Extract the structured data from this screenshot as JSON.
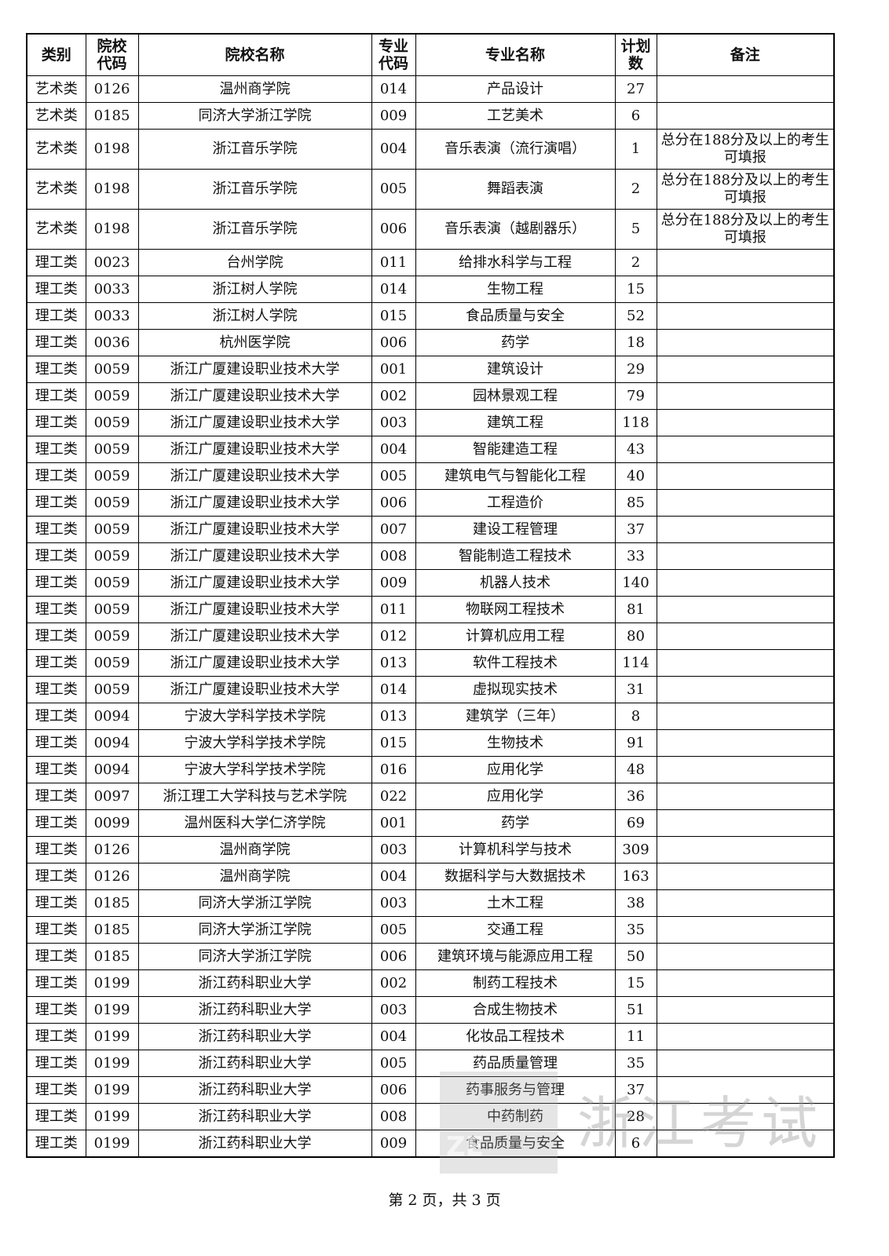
{
  "table": {
    "headers": [
      "类别",
      "院校\n代码",
      "院校名称",
      "专业\n代码",
      "专业名称",
      "计划\n数",
      "备注"
    ],
    "rows": [
      [
        "艺术类",
        "0126",
        "温州商学院",
        "014",
        "产品设计",
        "27",
        ""
      ],
      [
        "艺术类",
        "0185",
        "同济大学浙江学院",
        "009",
        "工艺美术",
        "6",
        ""
      ],
      [
        "艺术类",
        "0198",
        "浙江音乐学院",
        "004",
        "音乐表演（流行演唱）",
        "1",
        "总分在188分及以上的考生可填报"
      ],
      [
        "艺术类",
        "0198",
        "浙江音乐学院",
        "005",
        "舞蹈表演",
        "2",
        "总分在188分及以上的考生可填报"
      ],
      [
        "艺术类",
        "0198",
        "浙江音乐学院",
        "006",
        "音乐表演（越剧器乐）",
        "5",
        "总分在188分及以上的考生可填报"
      ],
      [
        "理工类",
        "0023",
        "台州学院",
        "011",
        "给排水科学与工程",
        "2",
        ""
      ],
      [
        "理工类",
        "0033",
        "浙江树人学院",
        "014",
        "生物工程",
        "15",
        ""
      ],
      [
        "理工类",
        "0033",
        "浙江树人学院",
        "015",
        "食品质量与安全",
        "52",
        ""
      ],
      [
        "理工类",
        "0036",
        "杭州医学院",
        "006",
        "药学",
        "18",
        ""
      ],
      [
        "理工类",
        "0059",
        "浙江广厦建设职业技术大学",
        "001",
        "建筑设计",
        "29",
        ""
      ],
      [
        "理工类",
        "0059",
        "浙江广厦建设职业技术大学",
        "002",
        "园林景观工程",
        "79",
        ""
      ],
      [
        "理工类",
        "0059",
        "浙江广厦建设职业技术大学",
        "003",
        "建筑工程",
        "118",
        ""
      ],
      [
        "理工类",
        "0059",
        "浙江广厦建设职业技术大学",
        "004",
        "智能建造工程",
        "43",
        ""
      ],
      [
        "理工类",
        "0059",
        "浙江广厦建设职业技术大学",
        "005",
        "建筑电气与智能化工程",
        "40",
        ""
      ],
      [
        "理工类",
        "0059",
        "浙江广厦建设职业技术大学",
        "006",
        "工程造价",
        "85",
        ""
      ],
      [
        "理工类",
        "0059",
        "浙江广厦建设职业技术大学",
        "007",
        "建设工程管理",
        "37",
        ""
      ],
      [
        "理工类",
        "0059",
        "浙江广厦建设职业技术大学",
        "008",
        "智能制造工程技术",
        "33",
        ""
      ],
      [
        "理工类",
        "0059",
        "浙江广厦建设职业技术大学",
        "009",
        "机器人技术",
        "140",
        ""
      ],
      [
        "理工类",
        "0059",
        "浙江广厦建设职业技术大学",
        "011",
        "物联网工程技术",
        "81",
        ""
      ],
      [
        "理工类",
        "0059",
        "浙江广厦建设职业技术大学",
        "012",
        "计算机应用工程",
        "80",
        ""
      ],
      [
        "理工类",
        "0059",
        "浙江广厦建设职业技术大学",
        "013",
        "软件工程技术",
        "114",
        ""
      ],
      [
        "理工类",
        "0059",
        "浙江广厦建设职业技术大学",
        "014",
        "虚拟现实技术",
        "31",
        ""
      ],
      [
        "理工类",
        "0094",
        "宁波大学科学技术学院",
        "013",
        "建筑学（三年）",
        "8",
        ""
      ],
      [
        "理工类",
        "0094",
        "宁波大学科学技术学院",
        "015",
        "生物技术",
        "91",
        ""
      ],
      [
        "理工类",
        "0094",
        "宁波大学科学技术学院",
        "016",
        "应用化学",
        "48",
        ""
      ],
      [
        "理工类",
        "0097",
        "浙江理工大学科技与艺术学院",
        "022",
        "应用化学",
        "36",
        ""
      ],
      [
        "理工类",
        "0099",
        "温州医科大学仁济学院",
        "001",
        "药学",
        "69",
        ""
      ],
      [
        "理工类",
        "0126",
        "温州商学院",
        "003",
        "计算机科学与技术",
        "309",
        ""
      ],
      [
        "理工类",
        "0126",
        "温州商学院",
        "004",
        "数据科学与大数据技术",
        "163",
        ""
      ],
      [
        "理工类",
        "0185",
        "同济大学浙江学院",
        "003",
        "土木工程",
        "38",
        ""
      ],
      [
        "理工类",
        "0185",
        "同济大学浙江学院",
        "005",
        "交通工程",
        "35",
        ""
      ],
      [
        "理工类",
        "0185",
        "同济大学浙江学院",
        "006",
        "建筑环境与能源应用工程",
        "50",
        ""
      ],
      [
        "理工类",
        "0199",
        "浙江药科职业大学",
        "002",
        "制药工程技术",
        "15",
        ""
      ],
      [
        "理工类",
        "0199",
        "浙江药科职业大学",
        "003",
        "合成生物技术",
        "51",
        ""
      ],
      [
        "理工类",
        "0199",
        "浙江药科职业大学",
        "004",
        "化妆品工程技术",
        "11",
        ""
      ],
      [
        "理工类",
        "0199",
        "浙江药科职业大学",
        "005",
        "药品质量管理",
        "35",
        ""
      ],
      [
        "理工类",
        "0199",
        "浙江药科职业大学",
        "006",
        "药事服务与管理",
        "37",
        ""
      ],
      [
        "理工类",
        "0199",
        "浙江药科职业大学",
        "008",
        "中药制药",
        "28",
        ""
      ],
      [
        "理工类",
        "0199",
        "浙江药科职业大学",
        "009",
        "食品质量与安全",
        "6",
        ""
      ]
    ]
  },
  "watermark": {
    "logo_text": "ZE",
    "text": "浙江考试"
  },
  "footer": {
    "page_label": "第 2 页，共 3 页"
  }
}
